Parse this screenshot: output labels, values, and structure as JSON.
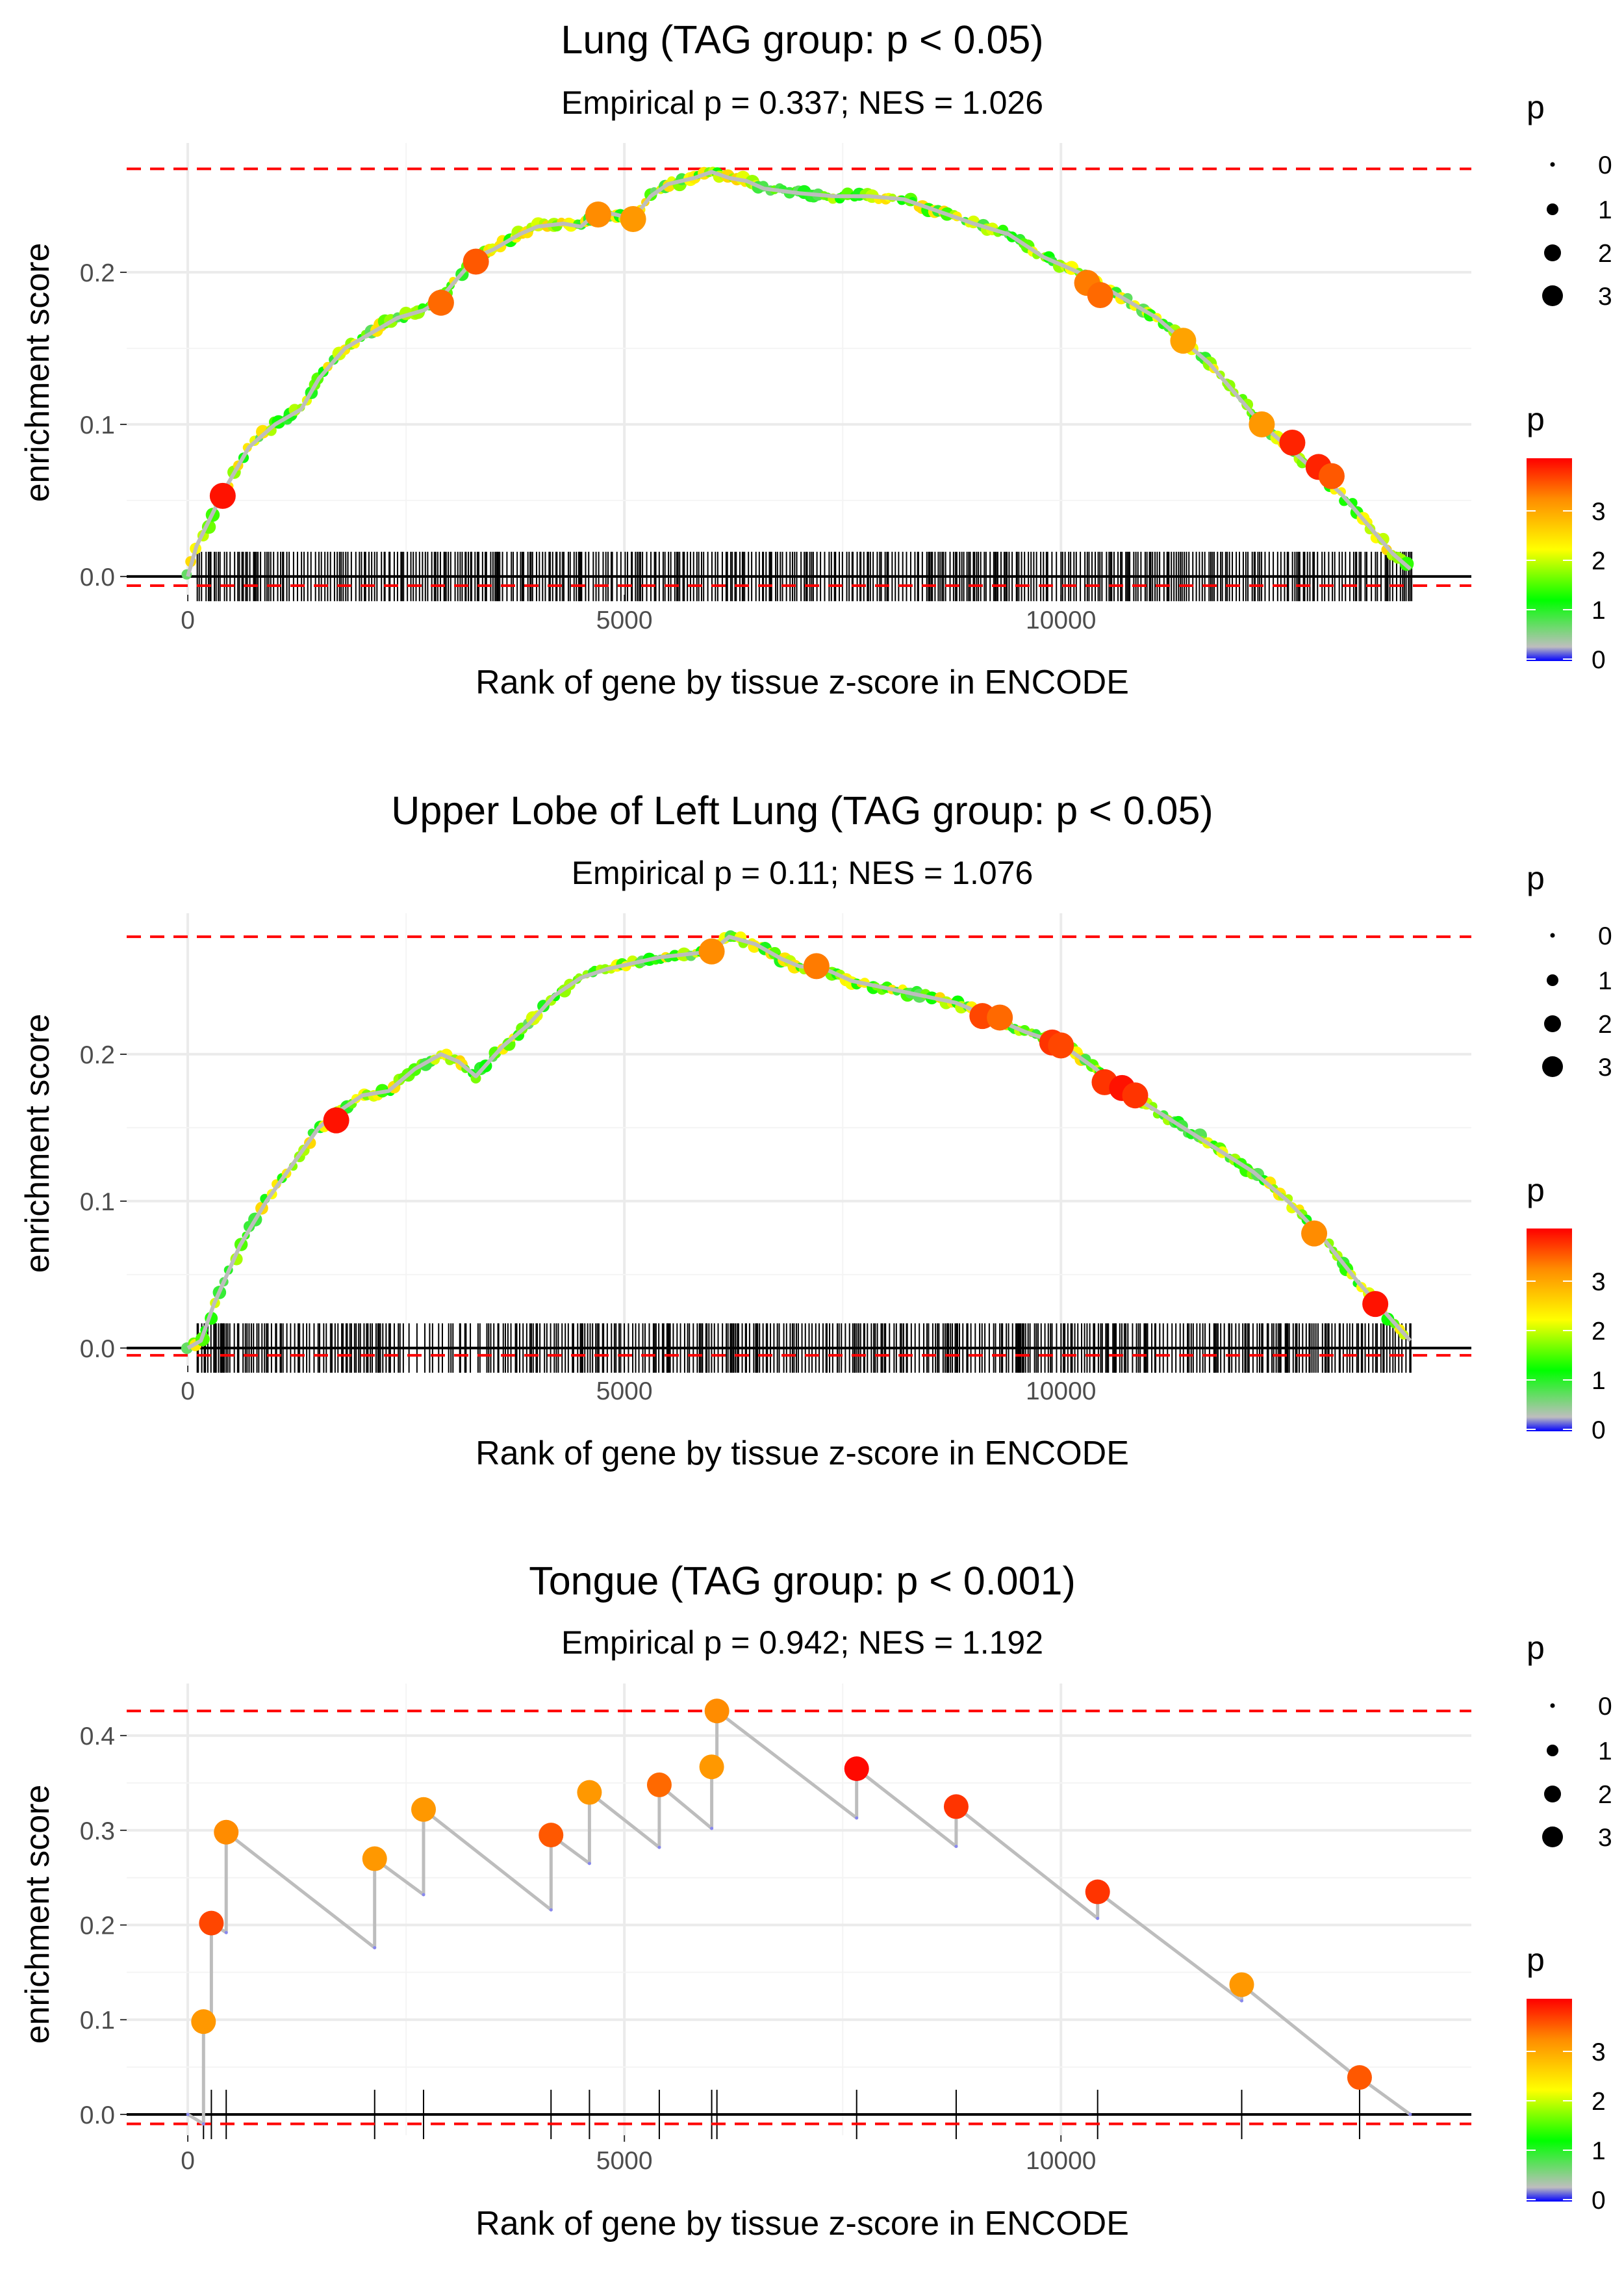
{
  "figure": {
    "palette": {
      "grid": "#ebebeb",
      "dashed_line": "#ff0000",
      "zero_line": "#000000",
      "curve": "#bdbdbd",
      "gradient_stops": [
        "#0000ff",
        "#bebebe",
        "#00ff00",
        "#ffff00",
        "#ff8c00",
        "#ff0000"
      ]
    }
  },
  "chart_data": [
    {
      "type": "line",
      "title": "Lung (TAG group: p < 0.05)",
      "subtitle": "Empirical p = 0.337; NES = 1.026",
      "xlabel": "Rank of gene by tissue z-score in ENCODE",
      "ylabel": "enrichment score",
      "xlim": [
        -700,
        14700
      ],
      "ylim": [
        -0.012,
        0.285
      ],
      "x_ticks": [
        0,
        5000,
        10000
      ],
      "x_tick_labels": [
        "0",
        "5000",
        "10000"
      ],
      "y_ticks": [
        0.0,
        0.1,
        0.2
      ],
      "y_tick_labels": [
        "0.0",
        "0.1",
        "0.2"
      ],
      "max_es": 0.268,
      "min_es": -0.006,
      "hit_region": [
        100,
        14000
      ],
      "hit_density": "dense",
      "curve_x": [
        0,
        100,
        400,
        700,
        1000,
        1300,
        1500,
        1800,
        2100,
        2400,
        2700,
        2850,
        3000,
        3300,
        3500,
        3800,
        4000,
        4300,
        4500,
        4700,
        4900,
        5100,
        5300,
        5500,
        5800,
        6000,
        6200,
        6400,
        6600,
        7000,
        7400,
        7800,
        8200,
        8600,
        9000,
        9400,
        9800,
        10200,
        10500,
        10800,
        11100,
        11400,
        11700,
        12000,
        12300,
        12600,
        12900,
        13200,
        13500,
        13800,
        14000
      ],
      "curve_y": [
        0.0,
        0.02,
        0.055,
        0.085,
        0.1,
        0.11,
        0.13,
        0.15,
        0.16,
        0.17,
        0.175,
        0.18,
        0.19,
        0.21,
        0.215,
        0.225,
        0.23,
        0.232,
        0.23,
        0.24,
        0.238,
        0.235,
        0.25,
        0.258,
        0.262,
        0.266,
        0.262,
        0.26,
        0.255,
        0.252,
        0.25,
        0.25,
        0.248,
        0.24,
        0.232,
        0.225,
        0.21,
        0.2,
        0.19,
        0.18,
        0.17,
        0.155,
        0.14,
        0.12,
        0.1,
        0.085,
        0.07,
        0.055,
        0.035,
        0.015,
        0.005
      ],
      "highlight_points": [
        {
          "x": 400,
          "y": 0.053,
          "p": 3.9
        },
        {
          "x": 2900,
          "y": 0.18,
          "p": 3.4
        },
        {
          "x": 3300,
          "y": 0.207,
          "p": 3.5
        },
        {
          "x": 4700,
          "y": 0.238,
          "p": 3.2
        },
        {
          "x": 5100,
          "y": 0.235,
          "p": 3.1
        },
        {
          "x": 10300,
          "y": 0.193,
          "p": 3.3
        },
        {
          "x": 10450,
          "y": 0.185,
          "p": 3.4
        },
        {
          "x": 11400,
          "y": 0.155,
          "p": 3.0
        },
        {
          "x": 12300,
          "y": 0.1,
          "p": 3.1
        },
        {
          "x": 12650,
          "y": 0.088,
          "p": 3.8
        },
        {
          "x": 12950,
          "y": 0.072,
          "p": 3.8
        },
        {
          "x": 13100,
          "y": 0.066,
          "p": 3.5
        }
      ]
    },
    {
      "type": "line",
      "title": "Upper Lobe of Left Lung (TAG group: p < 0.05)",
      "subtitle": "Empirical p = 0.11; NES = 1.076",
      "xlabel": "Rank of gene by tissue z-score in ENCODE",
      "ylabel": "enrichment score",
      "xlim": [
        -700,
        14700
      ],
      "ylim": [
        -0.012,
        0.296
      ],
      "x_ticks": [
        0,
        5000,
        10000
      ],
      "x_tick_labels": [
        "0",
        "5000",
        "10000"
      ],
      "y_ticks": [
        0.0,
        0.1,
        0.2
      ],
      "y_tick_labels": [
        "0.0",
        "0.1",
        "0.2"
      ],
      "max_es": 0.28,
      "min_es": -0.005,
      "hit_region": [
        100,
        14000
      ],
      "hit_density": "dense",
      "curve_x": [
        0,
        150,
        300,
        600,
        900,
        1200,
        1500,
        1700,
        2000,
        2300,
        2600,
        2900,
        3100,
        3300,
        3600,
        3900,
        4200,
        4500,
        4800,
        5100,
        5400,
        5700,
        6000,
        6200,
        6500,
        6800,
        7000,
        7300,
        7600,
        8000,
        8400,
        8800,
        9200,
        9600,
        10000,
        10400,
        10700,
        11000,
        11400,
        11800,
        12200,
        12600,
        13000,
        13400,
        13700,
        14000
      ],
      "curve_y": [
        0.0,
        0.005,
        0.03,
        0.07,
        0.1,
        0.125,
        0.15,
        0.16,
        0.172,
        0.175,
        0.19,
        0.2,
        0.195,
        0.185,
        0.205,
        0.22,
        0.24,
        0.252,
        0.258,
        0.262,
        0.266,
        0.268,
        0.27,
        0.28,
        0.275,
        0.265,
        0.26,
        0.258,
        0.25,
        0.245,
        0.24,
        0.235,
        0.225,
        0.215,
        0.207,
        0.19,
        0.175,
        0.165,
        0.15,
        0.135,
        0.12,
        0.1,
        0.075,
        0.045,
        0.025,
        0.005
      ],
      "highlight_points": [
        {
          "x": 1700,
          "y": 0.155,
          "p": 3.9
        },
        {
          "x": 6000,
          "y": 0.27,
          "p": 3.2
        },
        {
          "x": 7200,
          "y": 0.26,
          "p": 3.3
        },
        {
          "x": 9100,
          "y": 0.226,
          "p": 3.6
        },
        {
          "x": 9300,
          "y": 0.225,
          "p": 3.4
        },
        {
          "x": 9900,
          "y": 0.208,
          "p": 3.7
        },
        {
          "x": 10000,
          "y": 0.206,
          "p": 3.6
        },
        {
          "x": 10500,
          "y": 0.181,
          "p": 3.7
        },
        {
          "x": 10700,
          "y": 0.177,
          "p": 3.9
        },
        {
          "x": 10850,
          "y": 0.172,
          "p": 3.7
        },
        {
          "x": 12900,
          "y": 0.078,
          "p": 3.2
        },
        {
          "x": 13600,
          "y": 0.03,
          "p": 3.9
        }
      ]
    },
    {
      "type": "line",
      "title": "Tongue (TAG group: p < 0.001)",
      "subtitle": "Empirical p = 0.942; NES = 1.192",
      "xlabel": "Rank of gene by tissue z-score in ENCODE",
      "ylabel": "enrichment score",
      "xlim": [
        -700,
        14700
      ],
      "ylim": [
        -0.022,
        0.455
      ],
      "x_ticks": [
        0,
        5000,
        10000
      ],
      "x_tick_labels": [
        "0",
        "5000",
        "10000"
      ],
      "y_ticks": [
        0.0,
        0.1,
        0.2,
        0.3,
        0.4
      ],
      "y_tick_labels": [
        "0.0",
        "0.1",
        "0.2",
        "0.3",
        "0.4"
      ],
      "max_es": 0.426,
      "min_es": -0.01,
      "hit_region": [
        100,
        14000
      ],
      "hit_density": "sparse",
      "curve_x": [
        0,
        180,
        180,
        270,
        270,
        440,
        440,
        2140,
        2140,
        2700,
        2700,
        4160,
        4160,
        4600,
        4600,
        5400,
        5400,
        6000,
        6000,
        6060,
        6060,
        7660,
        7660,
        8800,
        8800,
        10420,
        10420,
        12070,
        12070,
        13420,
        13420,
        14000
      ],
      "curve_y": [
        0.0,
        -0.01,
        0.098,
        0.095,
        0.202,
        0.192,
        0.298,
        0.176,
        0.27,
        0.232,
        0.322,
        0.216,
        0.295,
        0.265,
        0.34,
        0.282,
        0.348,
        0.302,
        0.367,
        0.36,
        0.426,
        0.313,
        0.365,
        0.283,
        0.325,
        0.207,
        0.235,
        0.12,
        0.137,
        0.037,
        0.039,
        0.0
      ],
      "highlight_points": [
        {
          "x": 180,
          "y": 0.098,
          "p": 3.1
        },
        {
          "x": 270,
          "y": 0.202,
          "p": 3.6
        },
        {
          "x": 440,
          "y": 0.298,
          "p": 3.2
        },
        {
          "x": 2140,
          "y": 0.27,
          "p": 3.1
        },
        {
          "x": 2700,
          "y": 0.322,
          "p": 3.1
        },
        {
          "x": 4160,
          "y": 0.295,
          "p": 3.5
        },
        {
          "x": 4600,
          "y": 0.34,
          "p": 3.1
        },
        {
          "x": 5400,
          "y": 0.348,
          "p": 3.4
        },
        {
          "x": 6000,
          "y": 0.367,
          "p": 3.1
        },
        {
          "x": 6060,
          "y": 0.426,
          "p": 3.2
        },
        {
          "x": 7660,
          "y": 0.365,
          "p": 3.95
        },
        {
          "x": 8800,
          "y": 0.325,
          "p": 3.7
        },
        {
          "x": 10420,
          "y": 0.235,
          "p": 3.7
        },
        {
          "x": 12070,
          "y": 0.137,
          "p": 3.1
        },
        {
          "x": 13420,
          "y": 0.039,
          "p": 3.5
        }
      ],
      "hits": [
        180,
        270,
        440,
        2140,
        2700,
        4160,
        4600,
        5400,
        6000,
        6060,
        7660,
        8800,
        10420,
        12070,
        13420
      ]
    }
  ],
  "legends": [
    {
      "size_title": "p",
      "size_labels": [
        "0",
        "1",
        "2",
        "3"
      ],
      "color_title": "p",
      "color_labels": [
        "3",
        "2",
        "1",
        "0"
      ]
    },
    {
      "size_title": "p",
      "size_labels": [
        "0",
        "1",
        "2",
        "3"
      ],
      "color_title": "p",
      "color_labels": [
        "3",
        "2",
        "1",
        "0"
      ]
    },
    {
      "size_title": "p",
      "size_labels": [
        "0",
        "1",
        "2",
        "3"
      ],
      "color_title": "p",
      "color_labels": [
        "3",
        "2",
        "1",
        "0"
      ]
    }
  ]
}
